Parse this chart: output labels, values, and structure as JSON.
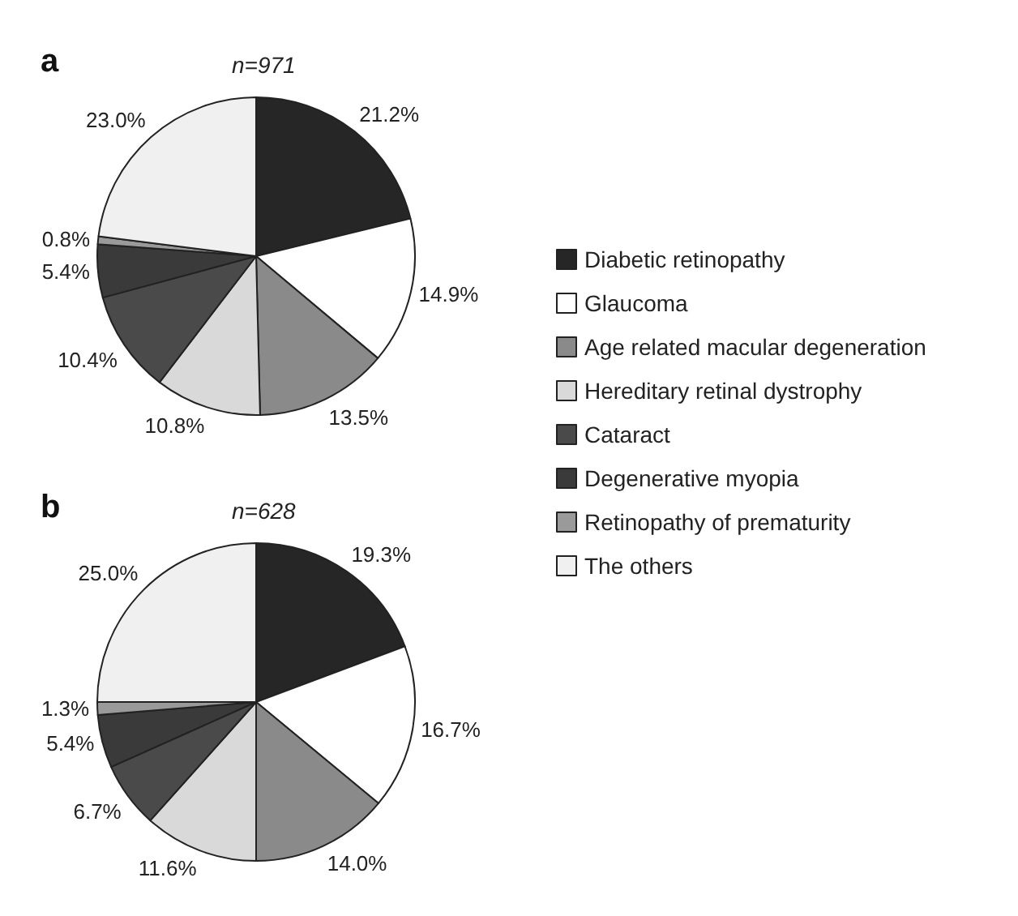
{
  "chart_data": [
    {
      "type": "pie",
      "title": "a",
      "subtitle": "n=971",
      "legend": "right",
      "categories": [
        "Diabetic retinopathy",
        "Glaucoma",
        "Age related macular degeneration",
        "Hereditary retinal dystrophy",
        "Cataract",
        "Degenerative myopia",
        "Retinopathy of prematurity",
        "The others"
      ],
      "values": [
        21.2,
        14.9,
        13.5,
        10.8,
        10.4,
        5.4,
        0.8,
        23.0
      ],
      "value_labels": [
        "21.2%",
        "14.9%",
        "13.5%",
        "10.8%",
        "10.4%",
        "5.4%",
        "0.8%",
        "23.0%"
      ],
      "colors": [
        "#262626",
        "#ffffff",
        "#8a8a8a",
        "#d9d9d9",
        "#4a4a4a",
        "#3a3a3a",
        "#9a9a9a",
        "#f0f0f0"
      ]
    },
    {
      "type": "pie",
      "title": "b",
      "subtitle": "n=628",
      "categories": [
        null,
        null,
        null,
        null,
        null,
        null,
        null,
        null
      ],
      "values": [
        19.3,
        16.7,
        14.0,
        11.6,
        6.7,
        5.4,
        1.3,
        25.0
      ],
      "value_labels": [
        "19.3%",
        "16.7%",
        "14.0%",
        "11.6%",
        "6.7%",
        "5.4%",
        "1.3%",
        "25.0%"
      ],
      "colors": [
        "#262626",
        "#ffffff",
        "#8a8a8a",
        "#d9d9d9",
        "#4a4a4a",
        "#3a3a3a",
        "#9a9a9a",
        "#f0f0f0"
      ]
    }
  ]
}
